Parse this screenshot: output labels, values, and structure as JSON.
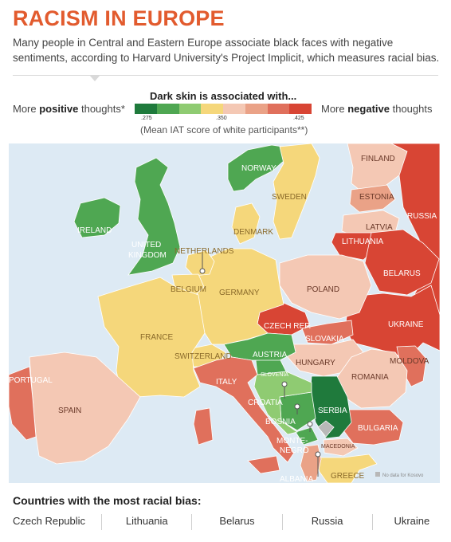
{
  "header": {
    "title": "RACISM IN EUROPE",
    "subtitle": "Many people in Central and Eastern Europe associate black faces with negative sentiments, according to Harvard University's Project Implicit, which measures racial bias."
  },
  "legend": {
    "title": "Dark skin is associated with...",
    "positive_prefix": "More ",
    "positive_word": "positive",
    "positive_suffix": " thoughts*",
    "negative_prefix": "More ",
    "negative_word": "negative",
    "negative_suffix": " thoughts",
    "ticks": [
      ".275",
      ".350",
      ".425"
    ],
    "note": "(Mean IAT score of white participants**)",
    "colors": [
      "#1f7a3c",
      "#4fa752",
      "#8fcb72",
      "#f5d77b",
      "#f4c8b4",
      "#eaa287",
      "#e0705c",
      "#d84534"
    ],
    "no_data_label": "No data for Kosovo",
    "no_data_color": "#b8b8b8"
  },
  "map": {
    "sea_color": "#ddeaf4",
    "land_nodata_color": "#e6e6e6",
    "countries": [
      {
        "name": "FINLAND",
        "color": "#f4c8b4"
      },
      {
        "name": "NORWAY",
        "color": "#4fa752"
      },
      {
        "name": "SWEDEN",
        "color": "#f5d77b"
      },
      {
        "name": "ESTONIA",
        "color": "#eaa287"
      },
      {
        "name": "RUSSIA",
        "color": "#d84534"
      },
      {
        "name": "LATVIA",
        "color": "#f4c8b4"
      },
      {
        "name": "LITHUANIA",
        "color": "#d84534"
      },
      {
        "name": "BELARUS",
        "color": "#d84534"
      },
      {
        "name": "DENMARK",
        "color": "#f5d77b"
      },
      {
        "name": "IRELAND",
        "color": "#4fa752"
      },
      {
        "name": "UNITED KINGDOM",
        "color": "#4fa752"
      },
      {
        "name": "NETHERLANDS",
        "color": "#f5d77b"
      },
      {
        "name": "BELGIUM",
        "color": "#f5d77b"
      },
      {
        "name": "GERMANY",
        "color": "#f5d77b"
      },
      {
        "name": "POLAND",
        "color": "#f4c8b4"
      },
      {
        "name": "UKRAINE",
        "color": "#d84534"
      },
      {
        "name": "CZECH REP.",
        "color": "#d84534"
      },
      {
        "name": "SLOVAKIA",
        "color": "#e0705c"
      },
      {
        "name": "FRANCE",
        "color": "#f5d77b"
      },
      {
        "name": "SWITZERLAND",
        "color": "#f5d77b"
      },
      {
        "name": "AUSTRIA",
        "color": "#4fa752"
      },
      {
        "name": "HUNGARY",
        "color": "#f4c8b4"
      },
      {
        "name": "MOLDOVA",
        "color": "#e0705c"
      },
      {
        "name": "ROMANIA",
        "color": "#f4c8b4"
      },
      {
        "name": "PORTUGAL",
        "color": "#e0705c"
      },
      {
        "name": "SPAIN",
        "color": "#f4c8b4"
      },
      {
        "name": "ITALY",
        "color": "#e0705c"
      },
      {
        "name": "SLOVENIA",
        "color": "#4fa752"
      },
      {
        "name": "CROATIA",
        "color": "#8fcb72"
      },
      {
        "name": "BOSNIA",
        "color": "#4fa752"
      },
      {
        "name": "SERBIA",
        "color": "#1f7a3c"
      },
      {
        "name": "MONTENEGRO",
        "color": "#4fa752"
      },
      {
        "name": "MACEDONIA",
        "color": "#f4c8b4"
      },
      {
        "name": "BULGARIA",
        "color": "#e0705c"
      },
      {
        "name": "ALBANIA",
        "color": "#eaa287"
      },
      {
        "name": "GREECE",
        "color": "#f5d77b"
      }
    ],
    "labels": {
      "finland": "FINLAND",
      "norway": "NORWAY",
      "sweden": "SWEDEN",
      "estonia": "ESTONIA",
      "russia": "RUSSIA",
      "latvia": "LATVIA",
      "lithuania": "LITHUANIA",
      "belarus": "BELARUS",
      "denmark": "DENMARK",
      "ireland": "IRELAND",
      "uk1": "UNITED",
      "uk2": "KINGDOM",
      "netherlands": "NETHERLANDS",
      "belgium": "BELGIUM",
      "germany": "GERMANY",
      "poland": "POLAND",
      "ukraine": "UKRAINE",
      "czech": "CZECH REP.",
      "slovakia": "SLOVAKIA",
      "france": "FRANCE",
      "switzerland": "SWITZERLAND",
      "austria": "AUSTRIA",
      "hungary": "HUNGARY",
      "moldova": "MOLDOVA",
      "romania": "ROMANIA",
      "portugal": "PORTUGAL",
      "spain": "SPAIN",
      "italy": "ITALY",
      "slovenia": "SLOVENIA",
      "croatia": "CROATIA",
      "bosnia": "BOSNIA",
      "serbia": "SERBIA",
      "montenegro1": "MONTE-",
      "montenegro2": "NEGRO",
      "macedonia": "MACEDONIA",
      "bulgaria": "BULGARIA",
      "albania": "ALBANIA",
      "greece": "GREECE"
    }
  },
  "bottom": {
    "title": "Countries with the most racial bias:",
    "countries": [
      "Czech Republic",
      "Lithuania",
      "Belarus",
      "Russia",
      "Ukraine"
    ]
  }
}
